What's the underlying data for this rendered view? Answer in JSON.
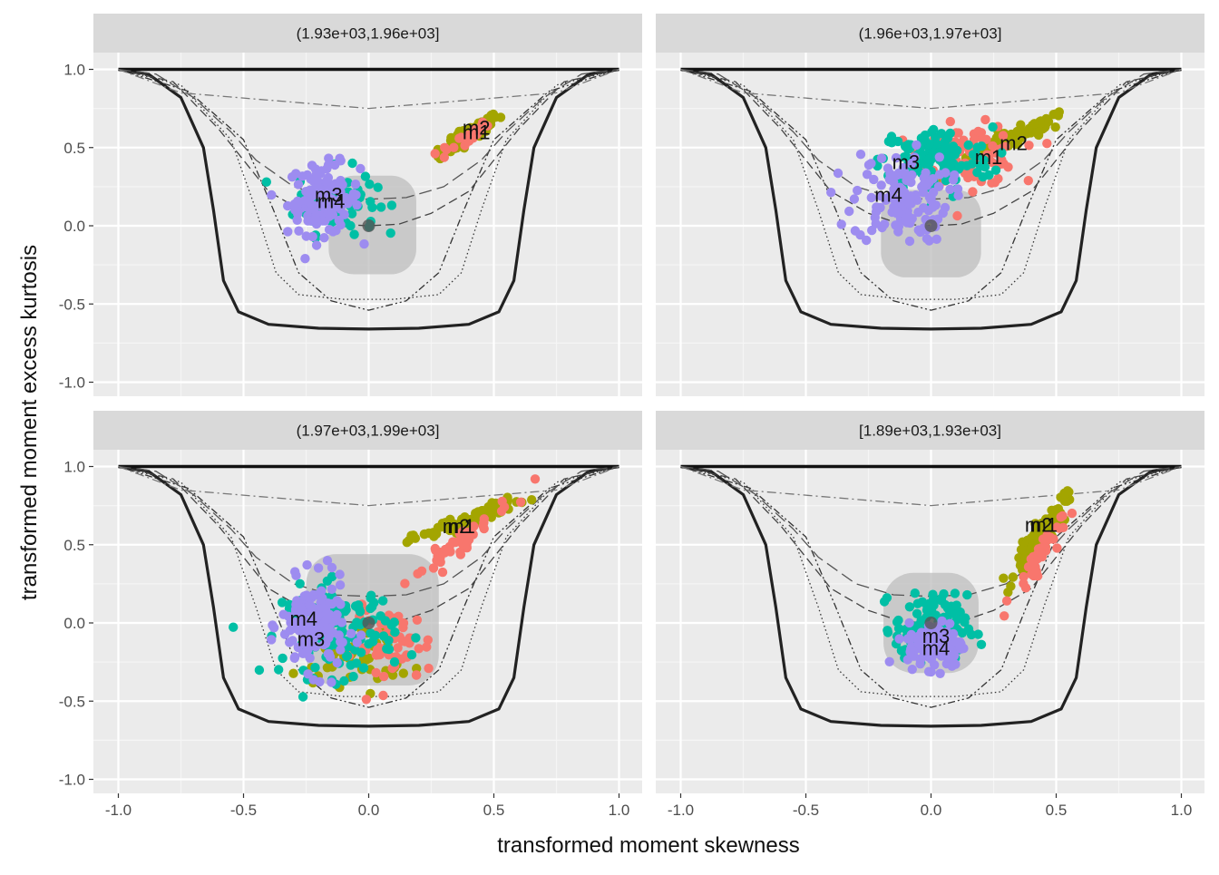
{
  "chart_data": {
    "type": "scatter",
    "layout": "facet-grid-2x2",
    "xlabel": "transformed moment skewness",
    "ylabel": "transformed moment excess kurtosis",
    "xlim": [
      -1.0,
      1.0
    ],
    "ylim": [
      -1.0,
      1.0
    ],
    "x_ticks": [
      "-1.0",
      "-0.5",
      "0.0",
      "0.5",
      "1.0"
    ],
    "y_ticks": [
      "-1.0",
      "-0.5",
      "0.0",
      "0.5",
      "1.0"
    ],
    "grid": true,
    "legend": "none",
    "series_colors": {
      "m1": "#F8766D",
      "m2": "#A3A500",
      "m3": "#00BFA5",
      "m4": "#9D8CF0"
    },
    "reference_curves": [
      {
        "style": "solid-thick",
        "points": [
          [
            -1,
            1
          ],
          [
            -0.88,
            0.97
          ],
          [
            -0.75,
            0.82
          ],
          [
            -0.66,
            0.5
          ],
          [
            -0.62,
            0.1
          ],
          [
            -0.58,
            -0.35
          ],
          [
            -0.52,
            -0.55
          ],
          [
            -0.4,
            -0.63
          ],
          [
            -0.2,
            -0.655
          ],
          [
            0,
            -0.66
          ],
          [
            0.2,
            -0.655
          ],
          [
            0.4,
            -0.63
          ],
          [
            0.52,
            -0.55
          ],
          [
            0.58,
            -0.35
          ],
          [
            0.62,
            0.1
          ],
          [
            0.66,
            0.5
          ],
          [
            0.75,
            0.82
          ],
          [
            0.88,
            0.97
          ],
          [
            1,
            1
          ]
        ]
      },
      {
        "style": "solid-top",
        "points": [
          [
            -1,
            1.0
          ],
          [
            1,
            1.0
          ]
        ]
      },
      {
        "style": "dotted",
        "points": [
          [
            -1,
            1
          ],
          [
            -0.75,
            0.9
          ],
          [
            -0.55,
            0.55
          ],
          [
            -0.45,
            0.1
          ],
          [
            -0.37,
            -0.3
          ],
          [
            -0.28,
            -0.44
          ],
          [
            -0.1,
            -0.47
          ],
          [
            0,
            -0.47
          ],
          [
            0.1,
            -0.47
          ],
          [
            0.28,
            -0.44
          ],
          [
            0.37,
            -0.3
          ],
          [
            0.45,
            0.1
          ],
          [
            0.55,
            0.55
          ],
          [
            0.75,
            0.9
          ],
          [
            1,
            1
          ]
        ]
      },
      {
        "style": "dotdash-long",
        "points": [
          [
            -1,
            1
          ],
          [
            -0.72,
            0.86
          ],
          [
            -0.5,
            0.55
          ],
          [
            -0.38,
            0.1
          ],
          [
            -0.28,
            -0.3
          ],
          [
            -0.15,
            -0.48
          ],
          [
            0,
            -0.54
          ],
          [
            0.15,
            -0.48
          ],
          [
            0.28,
            -0.3
          ],
          [
            0.38,
            0.1
          ],
          [
            0.5,
            0.55
          ],
          [
            0.72,
            0.86
          ],
          [
            1,
            1
          ]
        ]
      },
      {
        "style": "dashed",
        "points": [
          [
            -1,
            1
          ],
          [
            -0.78,
            0.92
          ],
          [
            -0.6,
            0.62
          ],
          [
            -0.5,
            0.42
          ],
          [
            -0.4,
            0.22
          ],
          [
            -0.25,
            0.08
          ],
          [
            -0.12,
            0.01
          ],
          [
            0,
            0.0
          ],
          [
            0.12,
            0.01
          ],
          [
            0.25,
            0.08
          ],
          [
            0.4,
            0.22
          ],
          [
            0.5,
            0.42
          ],
          [
            0.6,
            0.62
          ],
          [
            0.78,
            0.92
          ],
          [
            1,
            1
          ]
        ]
      },
      {
        "style": "longdash",
        "points": [
          [
            -1,
            1
          ],
          [
            -0.85,
            0.97
          ],
          [
            -0.7,
            0.82
          ],
          [
            -0.55,
            0.6
          ],
          [
            -0.45,
            0.42
          ],
          [
            -0.3,
            0.25
          ],
          [
            -0.15,
            0.18
          ],
          [
            0,
            0.17
          ],
          [
            0.15,
            0.18
          ],
          [
            0.3,
            0.25
          ],
          [
            0.45,
            0.42
          ],
          [
            0.55,
            0.6
          ],
          [
            0.7,
            0.82
          ],
          [
            0.85,
            0.97
          ],
          [
            1,
            1
          ]
        ]
      },
      {
        "style": "dashdot-grey",
        "points": [
          [
            -1,
            1.0
          ],
          [
            -0.75,
            0.85
          ],
          [
            0,
            0.75
          ],
          [
            0.75,
            0.85
          ],
          [
            1,
            1.0
          ]
        ]
      }
    ],
    "panels": [
      {
        "title": "(1.93e+03,1.96e+03]",
        "region": {
          "x": [
            -0.16,
            0.19
          ],
          "y": [
            -0.31,
            0.32
          ],
          "r": 0.1
        },
        "center": [
          0.0,
          0.0
        ],
        "labels": [
          {
            "text": "m2",
            "x": 0.43,
            "y": 0.63
          },
          {
            "text": "m1",
            "x": 0.43,
            "y": 0.6
          },
          {
            "text": "m3",
            "x": -0.16,
            "y": 0.2
          },
          {
            "text": "m4",
            "x": -0.15,
            "y": 0.16
          }
        ],
        "clusters": [
          {
            "series": "m2",
            "cx": 0.4,
            "cy": 0.58,
            "sx": 0.06,
            "sy": 0.07,
            "n": 110,
            "mode": "band",
            "slope": 1.0
          },
          {
            "series": "m1",
            "cx": 0.38,
            "cy": 0.55,
            "sx": 0.05,
            "sy": 0.07,
            "n": 30,
            "mode": "band",
            "slope": 1.0
          },
          {
            "series": "m3",
            "cx": -0.13,
            "cy": 0.16,
            "sx": 0.1,
            "sy": 0.13,
            "n": 90,
            "mode": "blob"
          },
          {
            "series": "m4",
            "cx": -0.18,
            "cy": 0.17,
            "sx": 0.09,
            "sy": 0.14,
            "n": 120,
            "mode": "blob"
          }
        ]
      },
      {
        "title": "(1.96e+03,1.97e+03]",
        "region": {
          "x": [
            -0.2,
            0.2
          ],
          "y": [
            -0.33,
            0.23
          ],
          "r": 0.1
        },
        "center": [
          0.0,
          0.0
        ],
        "labels": [
          {
            "text": "m2",
            "x": 0.33,
            "y": 0.53
          },
          {
            "text": "m1",
            "x": 0.23,
            "y": 0.44
          },
          {
            "text": "m3",
            "x": -0.1,
            "y": 0.41
          },
          {
            "text": "m4",
            "x": -0.17,
            "y": 0.2
          }
        ],
        "clusters": [
          {
            "series": "m2",
            "cx": 0.32,
            "cy": 0.55,
            "sx": 0.12,
            "sy": 0.08,
            "n": 100,
            "mode": "band",
            "slope": 0.7
          },
          {
            "series": "m1",
            "cx": 0.16,
            "cy": 0.45,
            "sx": 0.12,
            "sy": 0.12,
            "n": 100,
            "mode": "blob"
          },
          {
            "series": "m3",
            "cx": 0.02,
            "cy": 0.42,
            "sx": 0.14,
            "sy": 0.13,
            "n": 130,
            "mode": "blob"
          },
          {
            "series": "m4",
            "cx": -0.12,
            "cy": 0.18,
            "sx": 0.12,
            "sy": 0.18,
            "n": 130,
            "mode": "blob"
          }
        ]
      },
      {
        "title": "(1.97e+03,1.99e+03]",
        "region": {
          "x": [
            -0.25,
            0.28
          ],
          "y": [
            -0.4,
            0.44
          ],
          "r": 0.12
        },
        "center": [
          0.0,
          0.0
        ],
        "labels": [
          {
            "text": "m2",
            "x": 0.35,
            "y": 0.62
          },
          {
            "text": "m1",
            "x": 0.37,
            "y": 0.62
          },
          {
            "text": "m4",
            "x": -0.26,
            "y": 0.03
          },
          {
            "text": "m3",
            "x": -0.23,
            "y": -0.1
          }
        ],
        "clusters": [
          {
            "series": "m2",
            "cx": 0.4,
            "cy": 0.66,
            "sx": 0.11,
            "sy": 0.07,
            "n": 90,
            "mode": "band",
            "slope": 0.6
          },
          {
            "series": "m2",
            "cx": -0.05,
            "cy": -0.2,
            "sx": 0.14,
            "sy": 0.12,
            "n": 60,
            "mode": "blob"
          },
          {
            "series": "m1",
            "cx": 0.35,
            "cy": 0.5,
            "sx": 0.12,
            "sy": 0.1,
            "n": 50,
            "mode": "band",
            "slope": 1.2
          },
          {
            "series": "m1",
            "cx": 0.1,
            "cy": -0.15,
            "sx": 0.1,
            "sy": 0.15,
            "n": 50,
            "mode": "blob"
          },
          {
            "series": "m3",
            "cx": -0.12,
            "cy": -0.05,
            "sx": 0.14,
            "sy": 0.18,
            "n": 130,
            "mode": "blob"
          },
          {
            "series": "m4",
            "cx": -0.22,
            "cy": -0.02,
            "sx": 0.08,
            "sy": 0.18,
            "n": 150,
            "mode": "blob"
          }
        ]
      },
      {
        "title": "[1.89e+03,1.93e+03]",
        "region": {
          "x": [
            -0.19,
            0.19
          ],
          "y": [
            -0.32,
            0.32
          ],
          "r": 0.12
        },
        "center": [
          0.0,
          0.0
        ],
        "labels": [
          {
            "text": "m2",
            "x": 0.43,
            "y": 0.63
          },
          {
            "text": "m1",
            "x": 0.45,
            "y": 0.63
          },
          {
            "text": "m3",
            "x": 0.02,
            "y": -0.08
          },
          {
            "text": "m4",
            "x": 0.02,
            "y": -0.16
          }
        ],
        "clusters": [
          {
            "series": "m2",
            "cx": 0.44,
            "cy": 0.55,
            "sx": 0.05,
            "sy": 0.15,
            "n": 130,
            "mode": "band",
            "slope": 2.2
          },
          {
            "series": "m1",
            "cx": 0.42,
            "cy": 0.4,
            "sx": 0.05,
            "sy": 0.14,
            "n": 40,
            "mode": "band",
            "slope": 2.2
          },
          {
            "series": "m3",
            "cx": 0.0,
            "cy": -0.03,
            "sx": 0.09,
            "sy": 0.13,
            "n": 120,
            "mode": "blob"
          },
          {
            "series": "m4",
            "cx": 0.02,
            "cy": -0.14,
            "sx": 0.07,
            "sy": 0.09,
            "n": 140,
            "mode": "blob"
          }
        ]
      }
    ]
  }
}
